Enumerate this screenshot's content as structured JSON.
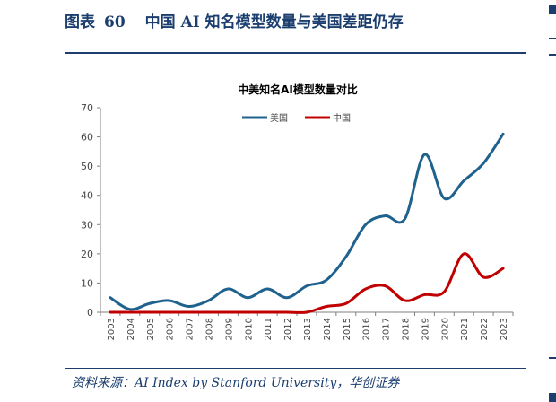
{
  "header": {
    "label": "图表",
    "number": "60",
    "title": "中国 AI 知名模型数量与美国差距仍存"
  },
  "source": "资料来源：AI Index by Stanford University，华创证券",
  "colors": {
    "accent": "#1b3e6f",
    "us": "#20628e",
    "china": "#c00000"
  },
  "chart_data": {
    "type": "line",
    "title": "中美知名AI模型数量对比",
    "xlabel": "",
    "ylabel": "",
    "x": [
      "2003",
      "2004",
      "2005",
      "2006",
      "2007",
      "2008",
      "2009",
      "2010",
      "2011",
      "2012",
      "2013",
      "2014",
      "2015",
      "2016",
      "2017",
      "2018",
      "2019",
      "2020",
      "2021",
      "2022",
      "2023"
    ],
    "ylim": [
      0,
      70
    ],
    "yticks": [
      "0",
      "10",
      "20",
      "30",
      "40",
      "50",
      "60",
      "70"
    ],
    "legend_position": "top",
    "grid": false,
    "series": [
      {
        "name": "美国",
        "color": "#20628e",
        "values": [
          5,
          1,
          3,
          4,
          2,
          4,
          8,
          5,
          8,
          5,
          9,
          11,
          19,
          30,
          33,
          32,
          54,
          39,
          45,
          51,
          61
        ]
      },
      {
        "name": "中国",
        "color": "#c00000",
        "values": [
          0,
          0,
          0,
          0,
          0,
          0,
          0,
          0,
          0,
          0,
          0,
          2,
          3,
          8,
          9,
          4,
          6,
          7,
          20,
          12,
          15
        ]
      }
    ]
  }
}
